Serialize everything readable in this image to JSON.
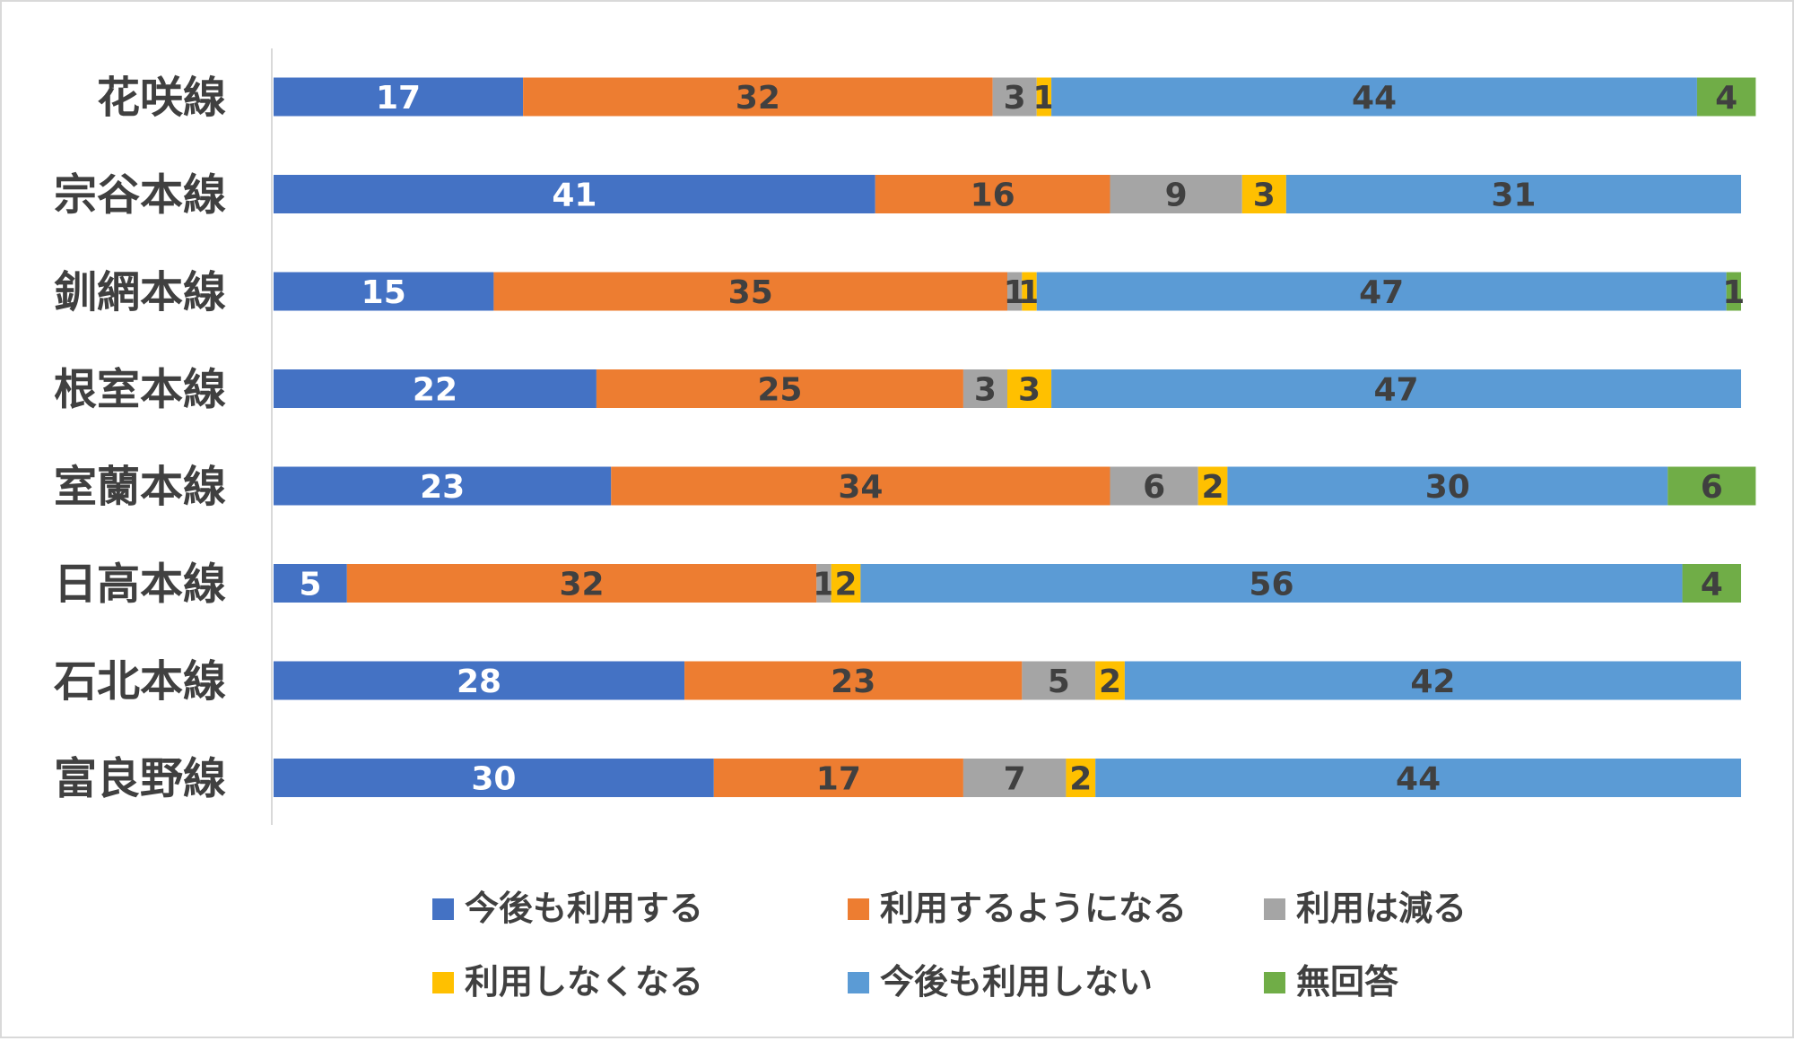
{
  "chart_data": {
    "type": "bar",
    "orientation": "horizontal",
    "stacked": true,
    "title": "",
    "xlabel": "",
    "ylabel": "",
    "xlim": [
      0,
      101
    ],
    "grid": false,
    "legend_position": "bottom",
    "categories": [
      "花咲線",
      "宗谷本線",
      "釧網本線",
      "根室本線",
      "室蘭本線",
      "日高本線",
      "石北本線",
      "富良野線"
    ],
    "series": [
      {
        "name": "今後も利用する",
        "color": "#4472C4",
        "label_color": "#FFFFFF",
        "values": [
          17,
          41,
          15,
          22,
          23,
          5,
          28,
          30
        ]
      },
      {
        "name": "利用するようになる",
        "color": "#ED7D31",
        "label_color": "#404040",
        "values": [
          32,
          16,
          35,
          25,
          34,
          32,
          23,
          17
        ]
      },
      {
        "name": "利用は減る",
        "color": "#A5A5A5",
        "label_color": "#404040",
        "values": [
          3,
          9,
          1,
          3,
          6,
          1,
          5,
          7
        ]
      },
      {
        "name": "利用しなくなる",
        "color": "#FFC000",
        "label_color": "#404040",
        "values": [
          1,
          3,
          1,
          3,
          2,
          2,
          2,
          2
        ]
      },
      {
        "name": "今後も利用しない",
        "color": "#5B9BD5",
        "label_color": "#404040",
        "values": [
          44,
          31,
          47,
          47,
          30,
          56,
          42,
          44
        ]
      },
      {
        "name": "無回答",
        "color": "#70AD47",
        "label_color": "#404040",
        "values": [
          4,
          null,
          1,
          null,
          6,
          4,
          null,
          null
        ]
      }
    ]
  }
}
